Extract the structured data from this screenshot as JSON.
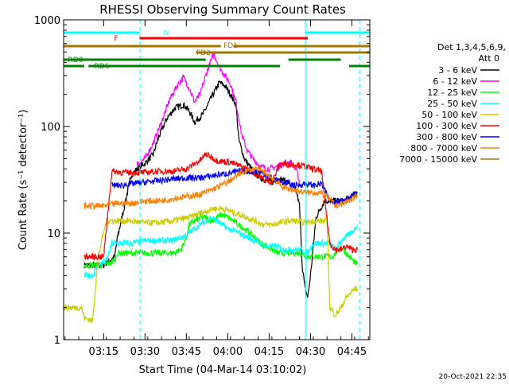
{
  "chart_data": {
    "type": "line",
    "title": "RHESSI Observing Summary Count Rates",
    "xlabel": "Start Time (04-Mar-14 03:10:02)",
    "ylabel": "Count Rate (s⁻¹ detector⁻¹)",
    "yscale": "log",
    "ylim": [
      1,
      1000
    ],
    "xlim_minutes": [
      180.5,
      291.5
    ],
    "x_tick_labels": [
      "03:15",
      "03:30",
      "03:45",
      "04:00",
      "04:15",
      "04:30",
      "04:45"
    ],
    "x_tick_minutes": [
      195,
      210,
      225,
      240,
      255,
      270,
      285
    ],
    "y_tick_labels": [
      "1",
      "10",
      "100",
      "1000"
    ],
    "y_tick_values": [
      1,
      10,
      100,
      1000
    ],
    "legend_header": [
      "Det 1,3,4,5,6,9,",
      "Att 0"
    ],
    "legend_placement": "right",
    "footer_date": "20-Oct-2021 22:35",
    "series": [
      {
        "name": "3 - 6 keV",
        "color": "#000000",
        "points": [
          [
            188,
            5
          ],
          [
            195,
            5
          ],
          [
            199,
            6
          ],
          [
            200,
            9
          ],
          [
            205,
            35
          ],
          [
            208,
            42
          ],
          [
            210,
            45
          ],
          [
            213,
            55
          ],
          [
            215,
            80
          ],
          [
            218,
            120
          ],
          [
            221,
            150
          ],
          [
            224,
            160
          ],
          [
            226,
            140
          ],
          [
            228,
            110
          ],
          [
            231,
            130
          ],
          [
            234,
            185
          ],
          [
            237,
            260
          ],
          [
            239,
            240
          ],
          [
            241,
            200
          ],
          [
            243,
            160
          ],
          [
            244,
            75
          ],
          [
            246,
            50
          ],
          [
            248,
            42
          ],
          [
            250,
            36
          ],
          [
            253,
            32
          ],
          [
            256,
            30
          ],
          [
            259,
            32
          ],
          [
            262,
            30
          ],
          [
            265,
            24
          ],
          [
            266,
            18
          ],
          [
            267,
            5
          ],
          [
            268,
            3
          ],
          [
            269,
            2.5
          ],
          [
            270,
            4
          ],
          [
            272,
            14
          ],
          [
            275,
            20
          ],
          [
            278,
            20
          ],
          [
            280,
            20
          ],
          [
            282,
            20
          ],
          [
            285,
            22
          ],
          [
            287,
            24
          ]
        ]
      },
      {
        "name": "6 - 12 keV",
        "color": "#ff00ff",
        "points": [
          [
            207,
            44
          ],
          [
            210,
            50
          ],
          [
            213,
            70
          ],
          [
            216,
            110
          ],
          [
            219,
            180
          ],
          [
            222,
            250
          ],
          [
            224,
            290
          ],
          [
            226,
            230
          ],
          [
            228,
            170
          ],
          [
            230,
            200
          ],
          [
            232,
            300
          ],
          [
            234,
            420
          ],
          [
            235,
            480
          ],
          [
            237,
            360
          ],
          [
            239,
            300
          ],
          [
            241,
            250
          ],
          [
            243,
            170
          ],
          [
            245,
            85
          ],
          [
            247,
            60
          ],
          [
            249,
            50
          ],
          [
            252,
            42
          ],
          [
            255,
            40
          ],
          [
            258,
            42
          ],
          [
            261,
            46
          ],
          [
            263,
            46
          ],
          [
            265,
            38
          ],
          [
            266,
            30
          ]
        ]
      },
      {
        "name": "12 - 25 keV",
        "color": "#00ff00",
        "points": [
          [
            188,
            5
          ],
          [
            195,
            5
          ],
          [
            199,
            5.5
          ],
          [
            200,
            6.5
          ],
          [
            205,
            6.5
          ],
          [
            210,
            6.5
          ],
          [
            215,
            6.5
          ],
          [
            220,
            6.5
          ],
          [
            223,
            7
          ],
          [
            225,
            9
          ],
          [
            226,
            12
          ],
          [
            228,
            13
          ],
          [
            230,
            14
          ],
          [
            232,
            14
          ],
          [
            234,
            13
          ],
          [
            236,
            14
          ],
          [
            238,
            15
          ],
          [
            240,
            14
          ],
          [
            242,
            13
          ],
          [
            244,
            12
          ],
          [
            246,
            11
          ],
          [
            248,
            10
          ],
          [
            250,
            9
          ],
          [
            252,
            8
          ],
          [
            254,
            7.5
          ],
          [
            256,
            7
          ],
          [
            258,
            6.5
          ],
          [
            260,
            6.5
          ],
          [
            263,
            6.5
          ],
          [
            266,
            6.5
          ],
          [
            269,
            6
          ],
          [
            272,
            6
          ],
          [
            275,
            6
          ],
          [
            278,
            6
          ],
          [
            281,
            7.5
          ],
          [
            284,
            6
          ],
          [
            287,
            5
          ]
        ]
      },
      {
        "name": "25 - 50 keV",
        "color": "#00ffff",
        "points": [
          [
            188,
            4
          ],
          [
            191,
            4
          ],
          [
            193,
            5
          ],
          [
            196,
            5.5
          ],
          [
            198,
            8
          ],
          [
            202,
            8
          ],
          [
            205,
            8
          ],
          [
            210,
            8.5
          ],
          [
            215,
            8.5
          ],
          [
            220,
            8.5
          ],
          [
            225,
            9.5
          ],
          [
            228,
            11
          ],
          [
            230,
            12
          ],
          [
            232,
            13
          ],
          [
            234,
            14
          ],
          [
            236,
            13
          ],
          [
            238,
            12
          ],
          [
            240,
            11
          ],
          [
            242,
            10.5
          ],
          [
            244,
            10
          ],
          [
            246,
            9.5
          ],
          [
            248,
            9
          ],
          [
            250,
            8.5
          ],
          [
            252,
            8
          ],
          [
            254,
            7.5
          ],
          [
            256,
            7.5
          ],
          [
            258,
            7.5
          ],
          [
            260,
            7
          ],
          [
            263,
            7
          ],
          [
            266,
            7
          ],
          [
            269,
            6.5
          ],
          [
            271,
            8
          ],
          [
            274,
            8
          ],
          [
            277,
            8
          ],
          [
            279,
            7
          ],
          [
            282,
            9
          ],
          [
            285,
            10
          ],
          [
            287,
            12
          ]
        ]
      },
      {
        "name": "50 - 100 keV",
        "color": "#cccc00",
        "points": [
          [
            180.5,
            2
          ],
          [
            185,
            2
          ],
          [
            187,
            2
          ],
          [
            188,
            1.6
          ],
          [
            191,
            1.5
          ],
          [
            193,
            6
          ],
          [
            196,
            13
          ],
          [
            200,
            13
          ],
          [
            205,
            13
          ],
          [
            210,
            12.5
          ],
          [
            215,
            12.5
          ],
          [
            220,
            13
          ],
          [
            223,
            13.5
          ],
          [
            226,
            14
          ],
          [
            229,
            15
          ],
          [
            232,
            16
          ],
          [
            235,
            17
          ],
          [
            238,
            17
          ],
          [
            241,
            16
          ],
          [
            244,
            15
          ],
          [
            247,
            14
          ],
          [
            250,
            13
          ],
          [
            253,
            12
          ],
          [
            256,
            12
          ],
          [
            259,
            12.5
          ],
          [
            262,
            13
          ],
          [
            265,
            13
          ],
          [
            268,
            12.5
          ],
          [
            271,
            13
          ],
          [
            274,
            13
          ],
          [
            276,
            13
          ],
          [
            277,
            2
          ],
          [
            279,
            1.7
          ],
          [
            281,
            2
          ],
          [
            283,
            2.5
          ],
          [
            286,
            3
          ],
          [
            287,
            3
          ]
        ]
      },
      {
        "name": "100 - 300 keV",
        "color": "#ff0000",
        "points": [
          [
            188,
            6
          ],
          [
            191,
            6
          ],
          [
            193,
            6
          ],
          [
            195,
            6
          ],
          [
            198,
            38
          ],
          [
            202,
            37
          ],
          [
            205,
            37
          ],
          [
            210,
            37
          ],
          [
            215,
            38
          ],
          [
            220,
            38
          ],
          [
            225,
            40
          ],
          [
            230,
            48
          ],
          [
            232,
            55
          ],
          [
            234,
            52
          ],
          [
            236,
            48
          ],
          [
            238,
            47
          ],
          [
            241,
            46
          ],
          [
            244,
            43
          ],
          [
            247,
            40
          ],
          [
            250,
            36
          ],
          [
            253,
            32
          ],
          [
            256,
            30
          ],
          [
            259,
            45
          ],
          [
            262,
            44
          ],
          [
            265,
            44
          ],
          [
            268,
            42
          ],
          [
            271,
            40
          ],
          [
            274,
            38
          ],
          [
            277,
            8
          ],
          [
            279,
            7
          ],
          [
            281,
            7
          ],
          [
            283,
            7.5
          ],
          [
            285,
            7
          ],
          [
            287,
            7
          ]
        ]
      },
      {
        "name": "300 - 800 keV",
        "color": "#0000ff",
        "points": [
          [
            198,
            28
          ],
          [
            202,
            28
          ],
          [
            205,
            29
          ],
          [
            210,
            30
          ],
          [
            215,
            31
          ],
          [
            220,
            32
          ],
          [
            225,
            33
          ],
          [
            230,
            33
          ],
          [
            233,
            34
          ],
          [
            236,
            35
          ],
          [
            239,
            36
          ],
          [
            242,
            37
          ],
          [
            245,
            38
          ],
          [
            248,
            38
          ],
          [
            250,
            38
          ],
          [
            252,
            37
          ],
          [
            254,
            35
          ],
          [
            256,
            33
          ],
          [
            258,
            31
          ],
          [
            260,
            30
          ],
          [
            262,
            29
          ],
          [
            265,
            28
          ],
          [
            268,
            29
          ],
          [
            271,
            28
          ],
          [
            274,
            29
          ],
          [
            277,
            20
          ],
          [
            280,
            20
          ],
          [
            283,
            21
          ],
          [
            285,
            22
          ],
          [
            287,
            24
          ]
        ]
      },
      {
        "name": "800 - 7000 keV",
        "color": "#ff8000",
        "points": [
          [
            188,
            18
          ],
          [
            190,
            18
          ],
          [
            195,
            18
          ],
          [
            200,
            19
          ],
          [
            205,
            19
          ],
          [
            210,
            20
          ],
          [
            215,
            20
          ],
          [
            220,
            21
          ],
          [
            225,
            22
          ],
          [
            230,
            23
          ],
          [
            235,
            26
          ],
          [
            240,
            30
          ],
          [
            245,
            37
          ],
          [
            248,
            39
          ],
          [
            250,
            40
          ],
          [
            252,
            39
          ],
          [
            254,
            36
          ],
          [
            256,
            33
          ],
          [
            258,
            30
          ],
          [
            260,
            27
          ],
          [
            262,
            26
          ],
          [
            265,
            25
          ],
          [
            268,
            24
          ],
          [
            270,
            24
          ],
          [
            273,
            24
          ],
          [
            276,
            22
          ],
          [
            279,
            18
          ],
          [
            282,
            19
          ],
          [
            285,
            21
          ],
          [
            287,
            22
          ]
        ]
      },
      {
        "name": "7000 - 15000 keV",
        "color": "#a07800",
        "points": []
      }
    ]
  },
  "flags": [
    {
      "label": "N",
      "color": "#00ffff",
      "segments": [
        [
          180.5,
          208
        ]
      ],
      "segments2": [
        [
          268,
          291.5
        ]
      ]
    },
    {
      "label": "F",
      "color": "#ff0000",
      "segments": [
        [
          208,
          269
        ]
      ]
    },
    {
      "label": "FD1",
      "color": "#a07800",
      "segments": [
        [
          180.5,
          237.5
        ],
        [
          242,
          291.5
        ]
      ]
    },
    {
      "label": "FD2",
      "color": "#a07800",
      "segments": [
        [
          228.5,
          291.5
        ]
      ]
    },
    {
      "label": "RD0",
      "color": "#008000",
      "segments": [
        [
          180.5,
          232
        ],
        [
          262,
          281
        ]
      ]
    },
    {
      "label": "RD6",
      "color": "#008000",
      "segments": [
        [
          180.5,
          188
        ],
        [
          189.5,
          259
        ],
        [
          284,
          291.5
        ]
      ]
    }
  ],
  "vertical_lines": [
    {
      "minute": 208.2,
      "color": "#00ffff",
      "style": "dashed"
    },
    {
      "minute": 268.2,
      "color": "#00ffff",
      "style": "solid"
    },
    {
      "minute": 287.8,
      "color": "#00ffff",
      "style": "dashed"
    }
  ]
}
